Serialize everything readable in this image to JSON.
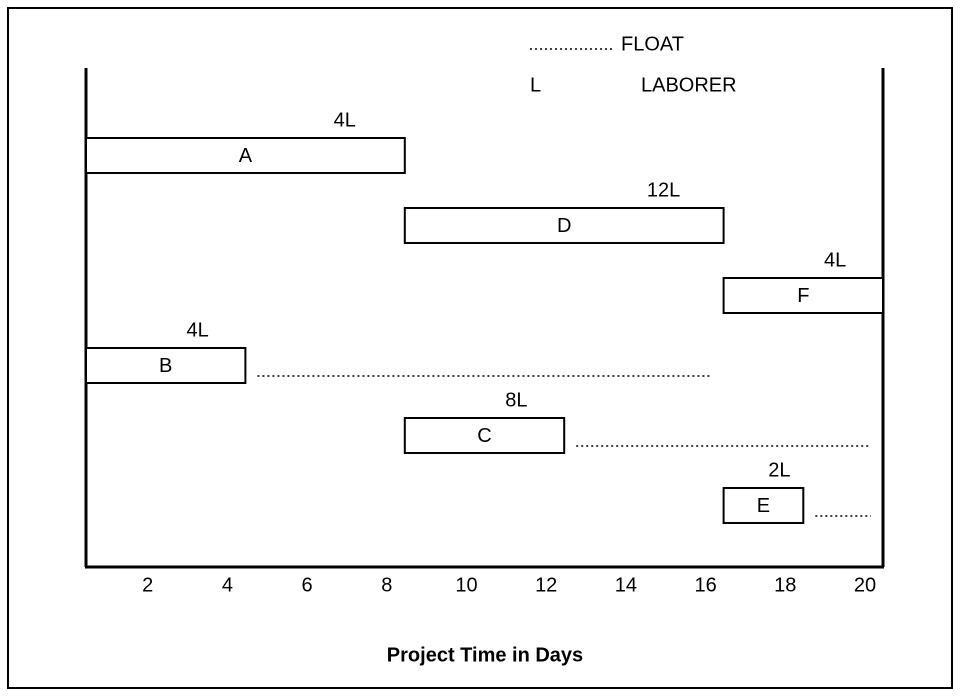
{
  "chart_data": {
    "type": "gantt",
    "xlabel": "Project Time in Days",
    "xlim": [
      0,
      20
    ],
    "xticks": [
      2,
      4,
      6,
      8,
      10,
      12,
      14,
      16,
      18,
      20
    ],
    "legend": [
      {
        "symbol": "dotted",
        "label": "FLOAT"
      },
      {
        "symbol": "L",
        "label": "LABORER"
      }
    ],
    "tasks": [
      {
        "name": "A",
        "start": 0,
        "end": 8,
        "resource": "4L"
      },
      {
        "name": "D",
        "start": 8,
        "end": 16,
        "resource": "12L"
      },
      {
        "name": "F",
        "start": 16,
        "end": 20,
        "resource": "4L"
      },
      {
        "name": "B",
        "start": 0,
        "end": 4,
        "resource": "4L",
        "float_end": 16
      },
      {
        "name": "C",
        "start": 8,
        "end": 12,
        "resource": "8L",
        "float_end": 20
      },
      {
        "name": "E",
        "start": 16,
        "end": 18,
        "resource": "2L",
        "float_end": 20
      }
    ]
  }
}
